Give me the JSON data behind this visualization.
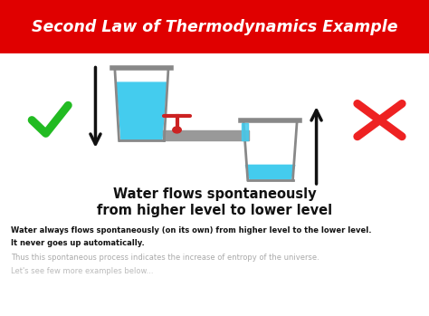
{
  "title": "Second Law of Thermodynamics Example",
  "title_bg": "#e00000",
  "title_color": "#ffffff",
  "bg_color": "#ffffff",
  "body_text1": "Water flows spontaneously",
  "body_text2": "from higher level to lower level",
  "desc1": "Water always flows spontaneously (on its own) from higher level to the lower level.",
  "desc2": "It never goes up automatically.",
  "desc3": "Thus this spontaneous process indicates the increase of entropy of the universe.",
  "desc4": "Let's see few more examples below...",
  "check_color": "#22bb22",
  "x_color": "#ee2222",
  "water_color": "#44ccee",
  "pipe_color": "#999999",
  "cup_fill": "#f0f0f0",
  "cup_outline": "#888888",
  "arrow_color": "#111111",
  "valve_color": "#cc2222",
  "xlim": [
    0,
    10
  ],
  "ylim": [
    0,
    10
  ]
}
